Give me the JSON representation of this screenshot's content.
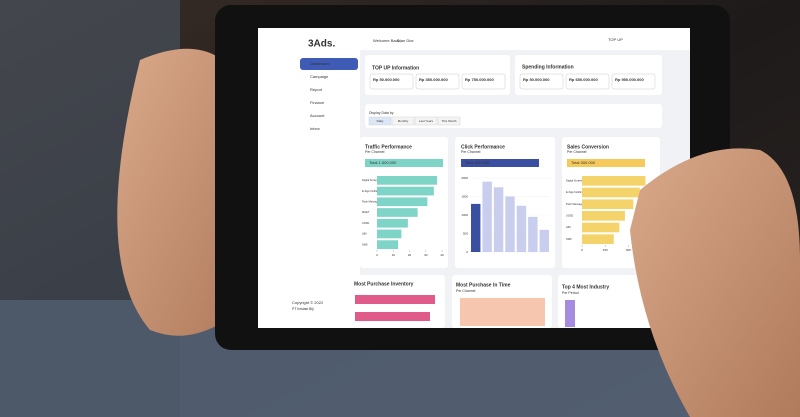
{
  "logo": "3Ads.",
  "nav": [
    "Dashboard",
    "Campaign",
    "Report",
    "Finance",
    "Account",
    "Inbox"
  ],
  "footer": {
    "copyright": "Copyright © 2022",
    "company": "PT Inisiasi Biji"
  },
  "header": {
    "welcome": "Welcome Back,",
    "user": "Dian Dior",
    "topup": "TOP UP"
  },
  "topup_info": {
    "title": "TOP UP Information",
    "amounts": [
      "Rp 50.000.000",
      "Rp 350.000.000",
      "Rp 750.000.000"
    ]
  },
  "spending_info": {
    "title": "Spending Information",
    "amounts": [
      "Rp 50.000.000",
      "Rp 650.000.000",
      "Rp 950.000.000"
    ]
  },
  "display": {
    "label": "Display Data by",
    "options": [
      "Daily",
      "Monthly",
      "Last Years",
      "This Month"
    ]
  },
  "traffic": {
    "title": "Traffic Performance",
    "subtitle": "Per Channel",
    "total": "Total 1.500.000",
    "categories": [
      "Digital Screen",
      "E-Sign Notification",
      "Push Message",
      "MGET",
      "USSD",
      "LBA",
      "SMS"
    ],
    "values": [
      37,
      35,
      31,
      25,
      19,
      15,
      13
    ],
    "xlim": [
      0,
      40
    ],
    "xticks": [
      0,
      10,
      20,
      30,
      40
    ]
  },
  "click": {
    "title": "Click Performance",
    "subtitle": "Per Channel",
    "total": "Total 300.000",
    "values": [
      1300,
      1900,
      1750,
      1500,
      1250,
      950,
      600
    ],
    "ylim": [
      0,
      2000
    ],
    "yticks": [
      0,
      500,
      1000,
      1500,
      2000
    ]
  },
  "sales": {
    "title": "Sales Conversion",
    "subtitle": "Per Channel",
    "total": "Total 300.000",
    "categories": [
      "Digital Screen",
      "E-Sign Notification",
      "Push Message",
      "USSD",
      "LBA",
      "SMS"
    ],
    "values": [
      68,
      62,
      55,
      46,
      40,
      34
    ],
    "xlim": [
      0,
      75
    ],
    "xticks": [
      0,
      {
        "value": 25,
        "label": "25K"
      },
      {
        "value": 50,
        "label": "50K"
      },
      {
        "value": 75,
        "label": "75K"
      }
    ]
  },
  "bottom": {
    "inventory": "Most Purchase Inventory",
    "time": "Most Purchase In Time",
    "time_sub": "Per Channel",
    "industry": "Top 4 Most Industry",
    "industry_sub": "Per Period"
  }
}
